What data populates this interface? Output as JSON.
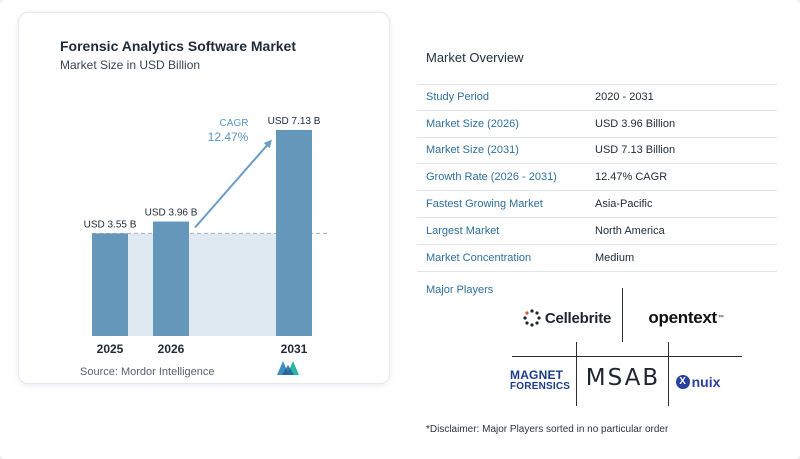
{
  "chart_data": {
    "type": "bar",
    "title": "Forensic Analytics Software Market",
    "subtitle": "Market Size in USD Billion",
    "categories": [
      "2025",
      "2026",
      "2031"
    ],
    "values": [
      3.55,
      3.96,
      7.13
    ],
    "data_labels": [
      "USD 3.55 B",
      "USD 3.96 B",
      "USD 7.13 B"
    ],
    "cagr_label": "CAGR",
    "cagr_value": "12.47%",
    "baseline_value": 3.55,
    "ylim": [
      0,
      7.3
    ],
    "colors": {
      "bar": "#6597bb",
      "shade": "#dfe9f2",
      "arrow": "#6a9ec3",
      "cagr": "#5b97c4"
    },
    "grid": false,
    "legend": "none"
  },
  "source": "Source:  Mordor Intelligence",
  "overview": {
    "title": "Market Overview",
    "rows": [
      {
        "key": "Study Period",
        "value": "2020 - 2031"
      },
      {
        "key": "Market Size (2026)",
        "value": "USD 3.96 Billion"
      },
      {
        "key": "Market Size (2031)",
        "value": "USD 7.13 Billion"
      },
      {
        "key": "Growth Rate (2026 - 2031)",
        "value": "12.47% CAGR"
      },
      {
        "key": "Fastest Growing Market",
        "value": "Asia-Pacific"
      },
      {
        "key": "Largest Market",
        "value": "North America"
      },
      {
        "key": "Market Concentration",
        "value": "Medium"
      }
    ]
  },
  "players": {
    "title": "Major Players",
    "cellebrite": "Cellebrite",
    "opentext": "opentext",
    "opentext_tm": "™",
    "magnet_line1": "MAGNET",
    "magnet_line2": "FORENSICS",
    "msab": "MSAB",
    "nuix": "nuix",
    "nuix_badge": "X"
  },
  "disclaimer": "*Disclaimer: Major Players sorted in no particular order"
}
